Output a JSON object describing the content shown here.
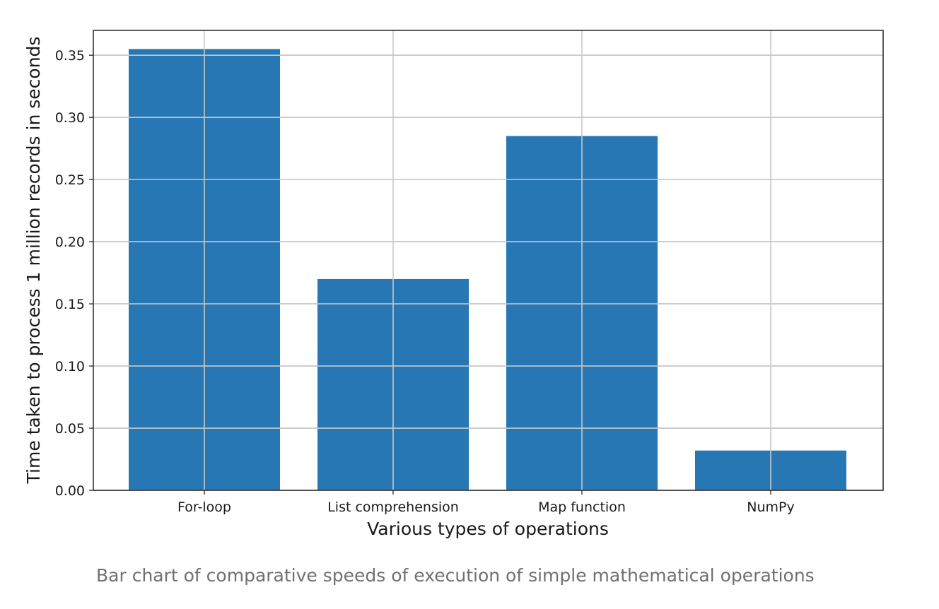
{
  "chart_data": {
    "type": "bar",
    "categories": [
      "For-loop",
      "List comprehension",
      "Map function",
      "NumPy"
    ],
    "values": [
      0.355,
      0.17,
      0.285,
      0.032
    ],
    "title": "",
    "xlabel": "Various types of operations",
    "ylabel": "Time taken to process 1 million records in seconds",
    "ylim": [
      0,
      0.37
    ],
    "yticks": [
      0.0,
      0.05,
      0.1,
      0.15,
      0.2,
      0.25,
      0.3,
      0.35
    ],
    "ytick_labels": [
      "0.00",
      "0.05",
      "0.10",
      "0.15",
      "0.20",
      "0.25",
      "0.30",
      "0.35"
    ],
    "grid": true,
    "bar_color": "#2677b3",
    "grid_color": "#c8c8c8"
  },
  "caption": "Bar chart of comparative speeds of execution of simple mathematical operations"
}
